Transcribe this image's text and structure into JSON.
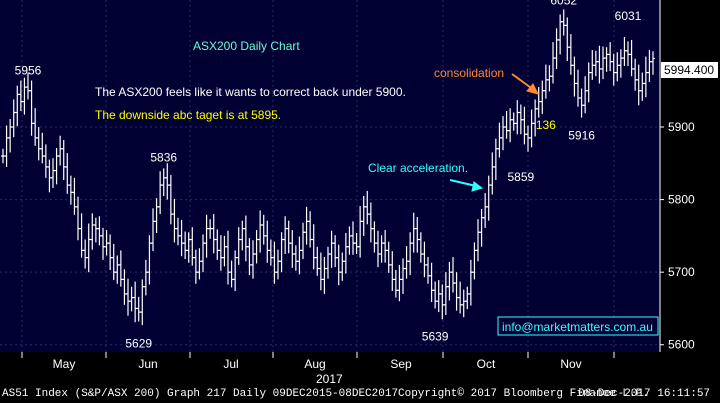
{
  "chart_data": {
    "type": "line",
    "title": "ASX200 Daily Chart",
    "series": [],
    "ylim": [
      5590,
      6075
    ],
    "yticks": [
      5600,
      5700,
      5800,
      5900
    ],
    "month_labels": [
      "May",
      "Jun",
      "Jul",
      "Aug",
      "Sep",
      "Oct",
      "Nov"
    ],
    "year_label": "2017",
    "last_price_label": "5994.400",
    "last_price": 5994.4,
    "grid": true,
    "points": [
      [
        0,
        5860
      ],
      [
        1,
        5885
      ],
      [
        2,
        5900
      ],
      [
        3,
        5920
      ],
      [
        4,
        5945
      ],
      [
        5,
        5935
      ],
      [
        6,
        5955
      ],
      [
        7,
        5950
      ],
      [
        8,
        5905
      ],
      [
        9,
        5885
      ],
      [
        10,
        5870
      ],
      [
        11,
        5860
      ],
      [
        12,
        5845
      ],
      [
        13,
        5830
      ],
      [
        14,
        5840
      ],
      [
        15,
        5860
      ],
      [
        16,
        5870
      ],
      [
        17,
        5845
      ],
      [
        18,
        5820
      ],
      [
        19,
        5810
      ],
      [
        20,
        5790
      ],
      [
        21,
        5760
      ],
      [
        22,
        5730
      ],
      [
        23,
        5720
      ],
      [
        24,
        5745
      ],
      [
        25,
        5765
      ],
      [
        26,
        5760
      ],
      [
        27,
        5750
      ],
      [
        28,
        5735
      ],
      [
        29,
        5740
      ],
      [
        30,
        5720
      ],
      [
        31,
        5700
      ],
      [
        32,
        5710
      ],
      [
        33,
        5690
      ],
      [
        34,
        5670
      ],
      [
        35,
        5660
      ],
      [
        36,
        5665
      ],
      [
        37,
        5650
      ],
      [
        38,
        5645
      ],
      [
        39,
        5680
      ],
      [
        40,
        5700
      ],
      [
        41,
        5740
      ],
      [
        42,
        5770
      ],
      [
        43,
        5790
      ],
      [
        44,
        5820
      ],
      [
        45,
        5830
      ],
      [
        46,
        5820
      ],
      [
        47,
        5780
      ],
      [
        48,
        5760
      ],
      [
        49,
        5750
      ],
      [
        50,
        5740
      ],
      [
        51,
        5730
      ],
      [
        52,
        5745
      ],
      [
        53,
        5720
      ],
      [
        54,
        5700
      ],
      [
        55,
        5715
      ],
      [
        56,
        5740
      ],
      [
        57,
        5760
      ],
      [
        58,
        5760
      ],
      [
        59,
        5745
      ],
      [
        60,
        5730
      ],
      [
        61,
        5720
      ],
      [
        62,
        5735
      ],
      [
        63,
        5700
      ],
      [
        64,
        5690
      ],
      [
        65,
        5720
      ],
      [
        66,
        5745
      ],
      [
        67,
        5760
      ],
      [
        68,
        5735
      ],
      [
        69,
        5710
      ],
      [
        70,
        5725
      ],
      [
        71,
        5745
      ],
      [
        72,
        5765
      ],
      [
        73,
        5750
      ],
      [
        74,
        5730
      ],
      [
        75,
        5720
      ],
      [
        76,
        5700
      ],
      [
        77,
        5715
      ],
      [
        78,
        5745
      ],
      [
        79,
        5760
      ],
      [
        80,
        5740
      ],
      [
        81,
        5725
      ],
      [
        82,
        5715
      ],
      [
        83,
        5730
      ],
      [
        84,
        5755
      ],
      [
        85,
        5770
      ],
      [
        86,
        5745
      ],
      [
        87,
        5720
      ],
      [
        88,
        5705
      ],
      [
        89,
        5690
      ],
      [
        90,
        5705
      ],
      [
        91,
        5725
      ],
      [
        92,
        5740
      ],
      [
        93,
        5720
      ],
      [
        94,
        5700
      ],
      [
        95,
        5715
      ],
      [
        96,
        5735
      ],
      [
        97,
        5750
      ],
      [
        98,
        5740
      ],
      [
        99,
        5735
      ],
      [
        100,
        5770
      ],
      [
        101,
        5790
      ],
      [
        102,
        5780
      ],
      [
        103,
        5760
      ],
      [
        104,
        5740
      ],
      [
        105,
        5725
      ],
      [
        106,
        5740
      ],
      [
        107,
        5730
      ],
      [
        108,
        5710
      ],
      [
        109,
        5690
      ],
      [
        110,
        5675
      ],
      [
        111,
        5690
      ],
      [
        112,
        5705
      ],
      [
        113,
        5715
      ],
      [
        114,
        5740
      ],
      [
        115,
        5760
      ],
      [
        116,
        5745
      ],
      [
        117,
        5725
      ],
      [
        118,
        5710
      ],
      [
        119,
        5695
      ],
      [
        120,
        5675
      ],
      [
        121,
        5660
      ],
      [
        122,
        5670
      ],
      [
        123,
        5655
      ],
      [
        124,
        5680
      ],
      [
        125,
        5700
      ],
      [
        126,
        5685
      ],
      [
        127,
        5665
      ],
      [
        128,
        5655
      ],
      [
        129,
        5660
      ],
      [
        130,
        5670
      ],
      [
        131,
        5700
      ],
      [
        132,
        5730
      ],
      [
        133,
        5755
      ],
      [
        134,
        5775
      ],
      [
        135,
        5790
      ],
      [
        136,
        5820
      ],
      [
        137,
        5845
      ],
      [
        138,
        5870
      ],
      [
        139,
        5885
      ],
      [
        140,
        5900
      ],
      [
        141,
        5895
      ],
      [
        142,
        5910
      ],
      [
        143,
        5905
      ],
      [
        144,
        5920
      ],
      [
        145,
        5910
      ],
      [
        146,
        5890
      ],
      [
        147,
        5885
      ],
      [
        148,
        5905
      ],
      [
        149,
        5925
      ],
      [
        150,
        5935
      ],
      [
        151,
        5950
      ],
      [
        152,
        5965
      ],
      [
        153,
        5970
      ],
      [
        154,
        5995
      ],
      [
        155,
        6020
      ],
      [
        156,
        6045
      ],
      [
        157,
        6040
      ],
      [
        158,
        6010
      ],
      [
        159,
        5985
      ],
      [
        160,
        5960
      ],
      [
        161,
        5940
      ],
      [
        162,
        5930
      ],
      [
        163,
        5950
      ],
      [
        164,
        5975
      ],
      [
        165,
        5985
      ],
      [
        166,
        5990
      ],
      [
        167,
        5980
      ],
      [
        168,
        5995
      ],
      [
        169,
        6000
      ],
      [
        170,
        5990
      ],
      [
        171,
        5975
      ],
      [
        172,
        5985
      ],
      [
        173,
        5995
      ],
      [
        174,
        6005
      ],
      [
        175,
        6000
      ],
      [
        176,
        5980
      ],
      [
        177,
        5965
      ],
      [
        178,
        5950
      ],
      [
        179,
        5960
      ],
      [
        180,
        5975
      ],
      [
        181,
        5990
      ],
      [
        182,
        5994.4
      ]
    ],
    "bar_count": 183
  },
  "annotations": {
    "headline": "The ASX200 feels like it wants to correct back under 5900.",
    "target": "The downside abc taget is at 5895.",
    "consolidation": "consolidation",
    "acceleration": "Clear acceleration.",
    "website": "info@marketmatters.com.au",
    "labels": [
      {
        "text": "5956",
        "x": 7,
        "y": 5956
      },
      {
        "text": "5836",
        "x": 45,
        "y": 5836
      },
      {
        "text": "5629",
        "x": 38,
        "y": 5629
      },
      {
        "text": "5639",
        "x": 121,
        "y": 5639
      },
      {
        "text": "5859",
        "x": 145,
        "y": 5859
      },
      {
        "text": "136",
        "x": 152,
        "y": 5936
      },
      {
        "text": "6052",
        "x": 157,
        "y": 6052
      },
      {
        "text": "5916",
        "x": 162,
        "y": 5916
      },
      {
        "text": "6031",
        "x": 175,
        "y": 6031
      }
    ]
  },
  "colors": {
    "background": "#000033",
    "candle": "#ffffff",
    "grid": "#2a2a66",
    "title": "#66ffcc",
    "annotation_white": "#ffffff",
    "annotation_yellow": "#ffff00",
    "annotation_orange": "#ff8833",
    "annotation_cyan": "#33ffff"
  },
  "footer": {
    "left": "AS51 Index (S&P/ASX 200) Graph 217  Daily 09DEC2015-08DEC2017",
    "copyright": "Copyright© 2017 Bloomberg Finance L.P.",
    "timestamp": "08-Dec-2017 16:11:57"
  }
}
